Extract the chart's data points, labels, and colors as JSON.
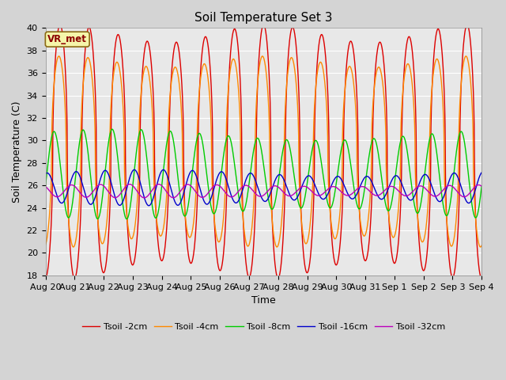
{
  "title": "Soil Temperature Set 3",
  "xlabel": "Time",
  "ylabel": "Soil Temperature (C)",
  "ylim": [
    18,
    40
  ],
  "fig_bg_color": "#d4d4d4",
  "plot_bg_color": "#e8e8e8",
  "annotation": "VR_met",
  "legend": [
    "Tsoil -2cm",
    "Tsoil -4cm",
    "Tsoil -8cm",
    "Tsoil -16cm",
    "Tsoil -32cm"
  ],
  "colors": [
    "#dd0000",
    "#ff8800",
    "#00cc00",
    "#0000cc",
    "#bb00bb"
  ],
  "tick_labels": [
    "Aug 20",
    "Aug 21",
    "Aug 22",
    "Aug 23",
    "Aug 24",
    "Aug 25",
    "Aug 26",
    "Aug 27",
    "Aug 28",
    "Aug 29",
    "Aug 30",
    "Aug 31",
    "Sep 1",
    "Sep 2",
    "Sep 3",
    "Sep 4"
  ],
  "yticks": [
    18,
    20,
    22,
    24,
    26,
    28,
    30,
    32,
    34,
    36,
    38,
    40
  ]
}
